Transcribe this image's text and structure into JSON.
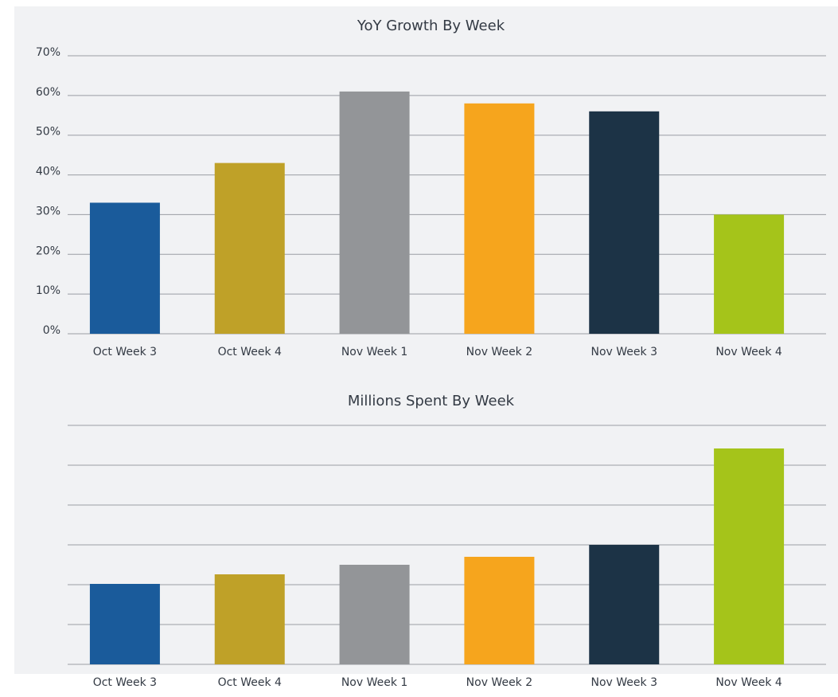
{
  "chart_data": [
    {
      "type": "bar",
      "title": "YoY Growth By Week",
      "categories": [
        "Oct Week 3",
        "Oct Week 4",
        "Nov Week 1",
        "Nov Week 2",
        "Nov Week 3",
        "Nov Week 4"
      ],
      "values": [
        33,
        43,
        61,
        58,
        56,
        30
      ],
      "colors": [
        "#1a5b9b",
        "#bfa128",
        "#939598",
        "#f6a51d",
        "#1c3346",
        "#a5c41a"
      ],
      "ylim": [
        0,
        70
      ],
      "yticks": [
        {
          "value": 0,
          "label": "0%"
        },
        {
          "value": 10,
          "label": "10%"
        },
        {
          "value": 20,
          "label": "20%"
        },
        {
          "value": 30,
          "label": "30%"
        },
        {
          "value": 40,
          "label": "40%"
        },
        {
          "value": 50,
          "label": "50%"
        },
        {
          "value": 60,
          "label": "60%"
        },
        {
          "value": 70,
          "label": "70%"
        }
      ],
      "grid": true
    },
    {
      "type": "bar",
      "title": "Millions Spent By Week",
      "categories": [
        "Oct Week 3",
        "Oct Week 4",
        "Nov Week 1",
        "Nov Week 2",
        "Nov Week 3",
        "Nov Week 4"
      ],
      "values": [
        2.02,
        2.26,
        2.5,
        2.7,
        3.0,
        5.42
      ],
      "colors": [
        "#1a5b9b",
        "#bfa128",
        "#939598",
        "#f6a51d",
        "#1c3346",
        "#a5c41a"
      ],
      "ylim": [
        0,
        6
      ],
      "yticks": [
        0,
        1,
        2,
        3,
        4,
        5,
        6
      ],
      "ytick_labels": false,
      "grid": true
    }
  ]
}
